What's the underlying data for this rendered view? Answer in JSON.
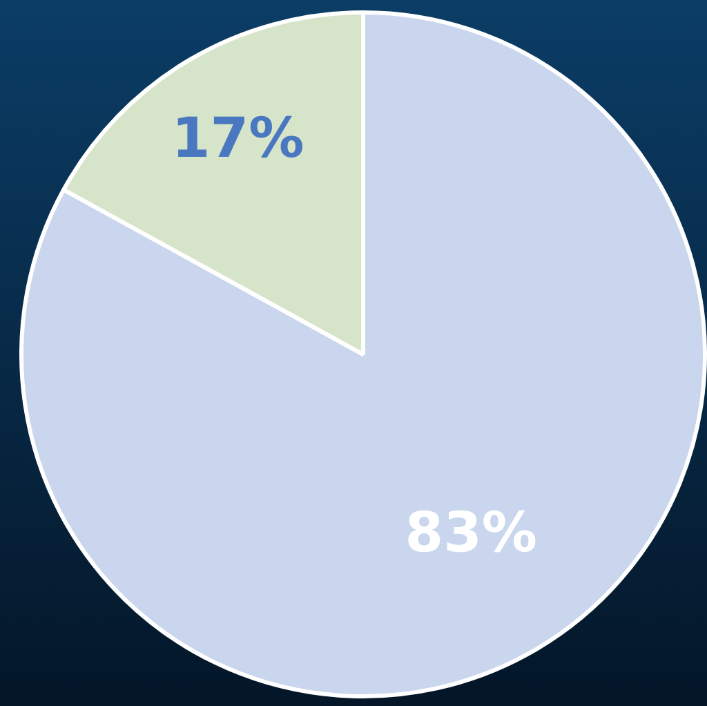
{
  "chart_data": {
    "type": "pie",
    "categories": [
      null,
      null
    ],
    "values": [
      83,
      17
    ],
    "colors": [
      "#c9d6ee",
      "#d6e4c9"
    ],
    "value_labels": [
      "83%",
      "17%"
    ]
  }
}
